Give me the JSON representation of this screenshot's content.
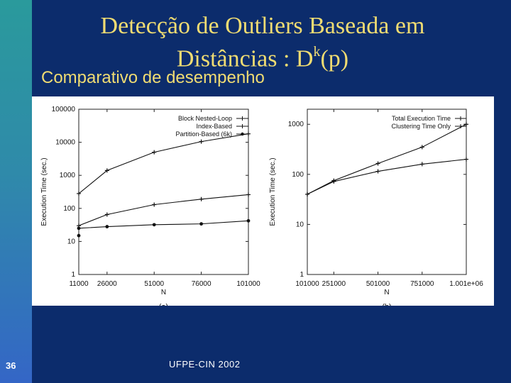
{
  "slide": {
    "title_main": "Detecção de Outliers Baseada em",
    "title_line2": "Distâncias : D",
    "title_sup": "k",
    "title_tail": "(p)",
    "subtitle": "Comparativo de desempenho",
    "slide_number": "36",
    "footer": "UFPE-CIN 2002"
  },
  "chart_data": [
    {
      "type": "line",
      "title": "",
      "label": "(a)",
      "xlabel": "N",
      "ylabel": "Execution Time (sec.)",
      "yscale": "log",
      "xlim": [
        11000,
        101000
      ],
      "ylim": [
        1,
        100000
      ],
      "xticks": [
        "11000",
        "26000",
        "51000",
        "76000",
        "101000"
      ],
      "yticks": [
        "1",
        "10",
        "100",
        "1000",
        "10000",
        "100000"
      ],
      "legend_position": "top-right",
      "x": [
        11000,
        26000,
        51000,
        76000,
        101000
      ],
      "series": [
        {
          "name": "Block Nested-Loop",
          "marker": "plus",
          "values": [
            280,
            1400,
            5000,
            10500,
            18000
          ]
        },
        {
          "name": "Index-Based",
          "marker": "plus",
          "values": [
            30,
            65,
            130,
            190,
            260
          ]
        },
        {
          "name": "Partition-Based (6k)",
          "marker": "dot",
          "values": [
            25,
            28,
            32,
            34,
            42
          ]
        }
      ],
      "extra_points": [
        {
          "series": "Partition-Based (6k)",
          "x": 11000,
          "y": 15
        }
      ]
    },
    {
      "type": "line",
      "title": "",
      "label": "(b)",
      "xlabel": "N",
      "ylabel": "Execution Time (sec.)",
      "yscale": "log",
      "xlim": [
        101000,
        1001000
      ],
      "ylim": [
        1,
        2000
      ],
      "xticks": [
        "101000",
        "251000",
        "501000",
        "751000",
        "1.001e+06"
      ],
      "yticks": [
        "1",
        "10",
        "100",
        "1000"
      ],
      "legend_position": "top-right",
      "x": [
        101000,
        251000,
        501000,
        751000,
        1001000
      ],
      "series": [
        {
          "name": "Total Execution Time",
          "marker": "plus",
          "values": [
            40,
            75,
            165,
            350,
            1000
          ]
        },
        {
          "name": "Clustering Time Only",
          "marker": "plus",
          "values": [
            40,
            72,
            115,
            160,
            200
          ]
        }
      ]
    }
  ]
}
